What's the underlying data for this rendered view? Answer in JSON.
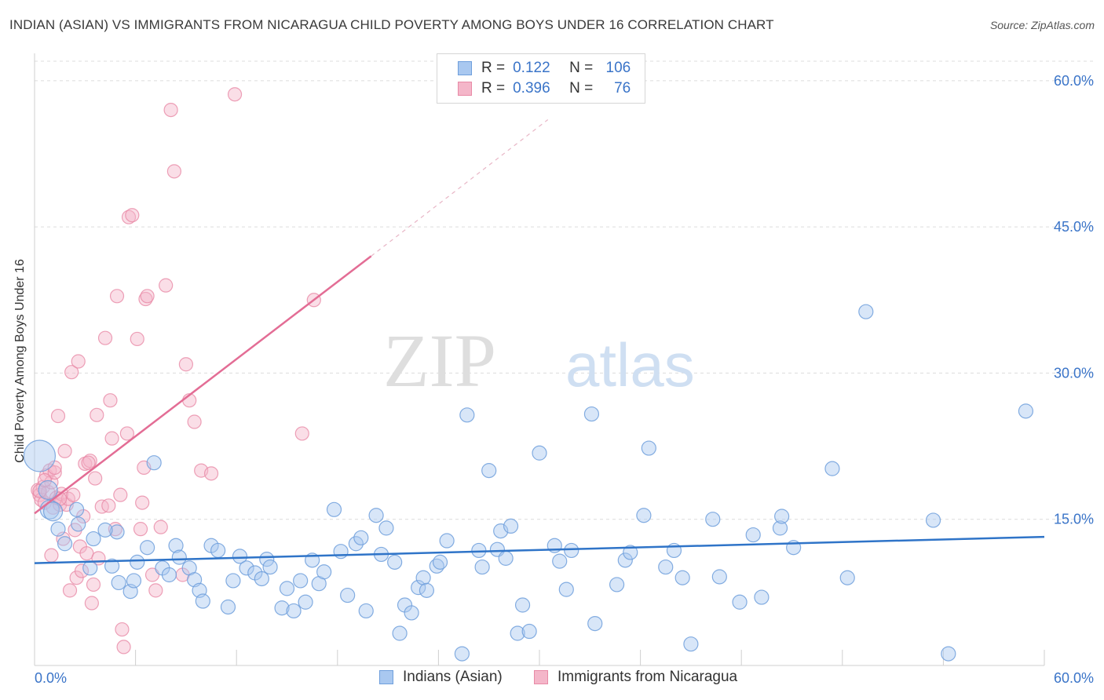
{
  "header": {
    "title": "INDIAN (ASIAN) VS IMMIGRANTS FROM NICARAGUA CHILD POVERTY AMONG BOYS UNDER 16 CORRELATION CHART",
    "source": "Source: ZipAtlas.com"
  },
  "watermark": {
    "zip": "ZIP",
    "atlas": "atlas"
  },
  "legend": {
    "row1": {
      "r_label": "R =",
      "r_value": "0.122",
      "n_label": "N =",
      "n_value": "106"
    },
    "row2": {
      "r_label": "R =",
      "r_value": "0.396",
      "n_label": "N =",
      "n_value": "76"
    }
  },
  "bottom_legend": {
    "series1": "Indians (Asian)",
    "series2": "Immigrants from Nicaragua"
  },
  "colors": {
    "blue_fill": "#a9c8f0",
    "blue_stroke": "#6f9fdc",
    "blue_line": "#2f74c8",
    "pink_fill": "#f4b6c9",
    "pink_stroke": "#e88aa6",
    "pink_line": "#e36d95",
    "grid": "#dcdcdc",
    "tick_label": "#3a74c8"
  },
  "chart_data": {
    "type": "scatter",
    "title": "INDIAN (ASIAN) VS IMMIGRANTS FROM NICARAGUA CHILD POVERTY AMONG BOYS UNDER 16 CORRELATION CHART",
    "xlabel": "",
    "ylabel": "Child Poverty Among Boys Under 16",
    "xlim": [
      0,
      60
    ],
    "ylim": [
      0,
      62
    ],
    "x_tick_labels": [
      "0.0%",
      "60.0%"
    ],
    "y_ticks": [
      15,
      30,
      45,
      60
    ],
    "y_tick_labels": [
      "15.0%",
      "30.0%",
      "45.0%",
      "60.0%"
    ],
    "x_minor_ticks": [
      0,
      6,
      12,
      18,
      24,
      30,
      36,
      42,
      48,
      54,
      60
    ],
    "series": [
      {
        "name": "Indians (Asian)",
        "color": "blue",
        "r": 0.122,
        "n": 106,
        "trend": {
          "x0": 0,
          "y0": 10.5,
          "x1": 60,
          "y1": 13.2
        },
        "points": [
          [
            0.3,
            21.5
          ],
          [
            0.8,
            18.0
          ],
          [
            0.9,
            16.0
          ],
          [
            1.4,
            14.0
          ],
          [
            1.8,
            12.5
          ],
          [
            2.5,
            16.0
          ],
          [
            2.6,
            14.5
          ],
          [
            3.3,
            10.0
          ],
          [
            3.5,
            13.0
          ],
          [
            4.6,
            10.2
          ],
          [
            4.9,
            13.7
          ],
          [
            5.0,
            8.5
          ],
          [
            5.7,
            7.6
          ],
          [
            5.9,
            8.7
          ],
          [
            6.1,
            10.6
          ],
          [
            6.7,
            12.1
          ],
          [
            7.1,
            20.8
          ],
          [
            7.6,
            10.0
          ],
          [
            8.0,
            9.3
          ],
          [
            8.4,
            12.3
          ],
          [
            8.6,
            11.1
          ],
          [
            9.2,
            10.0
          ],
          [
            9.5,
            8.8
          ],
          [
            9.8,
            7.7
          ],
          [
            10.0,
            6.6
          ],
          [
            10.5,
            12.3
          ],
          [
            10.9,
            11.8
          ],
          [
            11.5,
            6.0
          ],
          [
            11.8,
            8.7
          ],
          [
            12.2,
            11.2
          ],
          [
            12.6,
            10.0
          ],
          [
            13.1,
            9.5
          ],
          [
            13.5,
            8.9
          ],
          [
            13.8,
            10.9
          ],
          [
            14.0,
            10.1
          ],
          [
            14.7,
            5.9
          ],
          [
            15.0,
            7.9
          ],
          [
            15.4,
            5.6
          ],
          [
            15.8,
            8.7
          ],
          [
            16.1,
            6.5
          ],
          [
            16.5,
            10.8
          ],
          [
            16.9,
            8.4
          ],
          [
            17.2,
            9.6
          ],
          [
            17.8,
            16.0
          ],
          [
            18.2,
            11.7
          ],
          [
            18.6,
            7.2
          ],
          [
            19.1,
            12.5
          ],
          [
            19.4,
            13.1
          ],
          [
            19.7,
            5.6
          ],
          [
            20.3,
            15.4
          ],
          [
            20.6,
            11.4
          ],
          [
            20.9,
            14.1
          ],
          [
            21.4,
            10.6
          ],
          [
            21.7,
            3.3
          ],
          [
            22.0,
            6.2
          ],
          [
            22.4,
            5.4
          ],
          [
            22.8,
            8.0
          ],
          [
            23.1,
            9.0
          ],
          [
            23.3,
            7.7
          ],
          [
            23.9,
            10.2
          ],
          [
            24.1,
            10.6
          ],
          [
            24.5,
            12.8
          ],
          [
            25.7,
            25.7
          ],
          [
            25.4,
            1.2
          ],
          [
            26.4,
            11.8
          ],
          [
            26.6,
            10.1
          ],
          [
            27.0,
            20.0
          ],
          [
            27.5,
            11.9
          ],
          [
            27.7,
            13.8
          ],
          [
            28.0,
            11.0
          ],
          [
            28.3,
            14.3
          ],
          [
            28.7,
            3.3
          ],
          [
            29.0,
            6.2
          ],
          [
            29.4,
            3.5
          ],
          [
            30.0,
            21.8
          ],
          [
            30.9,
            12.3
          ],
          [
            31.2,
            10.7
          ],
          [
            31.6,
            7.8
          ],
          [
            31.9,
            11.8
          ],
          [
            33.1,
            25.8
          ],
          [
            33.3,
            4.3
          ],
          [
            34.6,
            8.3
          ],
          [
            35.1,
            10.8
          ],
          [
            35.4,
            11.6
          ],
          [
            36.2,
            15.4
          ],
          [
            36.5,
            22.3
          ],
          [
            37.5,
            10.1
          ],
          [
            38.0,
            11.8
          ],
          [
            38.5,
            9.0
          ],
          [
            39.0,
            2.2
          ],
          [
            40.3,
            15.0
          ],
          [
            40.7,
            9.1
          ],
          [
            41.9,
            6.5
          ],
          [
            42.7,
            13.4
          ],
          [
            43.2,
            7.0
          ],
          [
            44.3,
            14.1
          ],
          [
            44.4,
            15.3
          ],
          [
            45.1,
            12.1
          ],
          [
            47.4,
            20.2
          ],
          [
            48.3,
            9.0
          ],
          [
            49.4,
            36.3
          ],
          [
            53.4,
            14.9
          ],
          [
            54.3,
            1.2
          ],
          [
            58.9,
            26.1
          ],
          [
            1.1,
            15.8
          ],
          [
            4.2,
            13.9
          ]
        ]
      },
      {
        "name": "Immigrants from Nicaragua",
        "color": "pink",
        "r": 0.396,
        "n": 76,
        "trend": {
          "x0": 0,
          "y0": 15.6,
          "x1": 20.0,
          "y1": 42.0
        },
        "trend_ext": {
          "x0": 20.0,
          "y0": 42.0,
          "x1": 30.5,
          "y1": 56.0
        },
        "points": [
          [
            0.2,
            18.0
          ],
          [
            0.3,
            17.5
          ],
          [
            0.4,
            17.0
          ],
          [
            0.5,
            18.3
          ],
          [
            0.6,
            16.7
          ],
          [
            0.7,
            19.5
          ],
          [
            0.8,
            17.8
          ],
          [
            0.9,
            20.0
          ],
          [
            1.0,
            18.8
          ],
          [
            1.1,
            16.2
          ],
          [
            1.2,
            19.8
          ],
          [
            1.3,
            17.2
          ],
          [
            1.4,
            25.6
          ],
          [
            1.5,
            16.5
          ],
          [
            1.6,
            17.6
          ],
          [
            1.8,
            22.0
          ],
          [
            1.9,
            16.5
          ],
          [
            2.0,
            17.1
          ],
          [
            2.2,
            30.1
          ],
          [
            2.3,
            17.5
          ],
          [
            2.4,
            13.9
          ],
          [
            2.5,
            9.0
          ],
          [
            2.6,
            31.2
          ],
          [
            2.7,
            12.2
          ],
          [
            2.8,
            9.7
          ],
          [
            2.9,
            15.3
          ],
          [
            3.0,
            20.7
          ],
          [
            3.1,
            11.5
          ],
          [
            3.3,
            21.0
          ],
          [
            3.4,
            6.4
          ],
          [
            3.5,
            8.3
          ],
          [
            3.6,
            19.2
          ],
          [
            3.7,
            25.7
          ],
          [
            3.8,
            11.0
          ],
          [
            4.0,
            16.3
          ],
          [
            4.2,
            33.6
          ],
          [
            4.4,
            16.4
          ],
          [
            4.5,
            27.2
          ],
          [
            4.6,
            23.3
          ],
          [
            4.8,
            14.0
          ],
          [
            4.9,
            37.9
          ],
          [
            5.1,
            17.5
          ],
          [
            5.2,
            3.7
          ],
          [
            5.3,
            1.9
          ],
          [
            5.5,
            23.8
          ],
          [
            5.6,
            46.0
          ],
          [
            5.8,
            46.2
          ],
          [
            6.1,
            33.5
          ],
          [
            6.3,
            14.0
          ],
          [
            6.4,
            16.7
          ],
          [
            6.5,
            20.3
          ],
          [
            6.6,
            37.6
          ],
          [
            6.7,
            37.9
          ],
          [
            7.0,
            9.3
          ],
          [
            7.2,
            7.7
          ],
          [
            7.5,
            14.2
          ],
          [
            7.8,
            39.0
          ],
          [
            8.1,
            57.0
          ],
          [
            8.3,
            50.7
          ],
          [
            8.8,
            9.3
          ],
          [
            9.0,
            30.9
          ],
          [
            9.2,
            27.2
          ],
          [
            9.5,
            25.0
          ],
          [
            9.9,
            20.0
          ],
          [
            10.5,
            19.7
          ],
          [
            11.9,
            58.6
          ],
          [
            15.9,
            23.8
          ],
          [
            16.6,
            37.5
          ],
          [
            0.3,
            17.9
          ],
          [
            0.6,
            19.0
          ],
          [
            1.7,
            13.0
          ],
          [
            1.0,
            11.3
          ],
          [
            2.1,
            7.7
          ],
          [
            1.2,
            20.3
          ],
          [
            3.2,
            20.8
          ],
          [
            1.5,
            17.1
          ]
        ]
      }
    ]
  }
}
